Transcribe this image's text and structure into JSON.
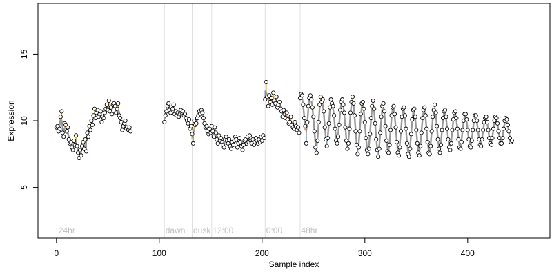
{
  "chart_data": {
    "type": "line",
    "xlabel": "Sample index",
    "ylabel": "Expression",
    "xlim": [
      -18,
      480
    ],
    "ylim": [
      1.2,
      18.8
    ],
    "xticks": [
      0,
      100,
      200,
      300,
      400
    ],
    "yticks": [
      5,
      10,
      15
    ],
    "group_labels": [
      {
        "text": "24hr",
        "x": 2
      },
      {
        "text": "dawn",
        "x": 106
      },
      {
        "text": "dusk",
        "x": 133
      },
      {
        "text": "12:00",
        "x": 152
      },
      {
        "text": "0:00",
        "x": 204
      },
      {
        "text": "48hr",
        "x": 238
      }
    ],
    "vlines": [
      105,
      132,
      151,
      203,
      237
    ],
    "colors": {
      "line": "#999999",
      "above": "#f5a623",
      "below": "#6f94c8",
      "vline": "#e0e0e0",
      "point_fill": "#ffffff",
      "point_stroke": "#000000"
    },
    "series": [
      {
        "segment_start": 0,
        "values": [
          9.5,
          9.6,
          9.2,
          9.4,
          10.3,
          10.7,
          9.1,
          8.8,
          9.8,
          9.7,
          9.2,
          9.5,
          8.6,
          8.3,
          8.4,
          8.0,
          7.8,
          8.5,
          8.2,
          8.9,
          8.1,
          7.6,
          7.2,
          7.8,
          7.4,
          8.1,
          8.4,
          7.9,
          8.6,
          7.7,
          9.1,
          8.8,
          9.6,
          9.3,
          10.0,
          9.7,
          10.4,
          10.9,
          10.2,
          10.6,
          10.8,
          10.3,
          10.5,
          10.7,
          9.9,
          10.3,
          10.2,
          10.6,
          10.9,
          11.2,
          10.8,
          11.5,
          10.7,
          11.0,
          10.5,
          11.2,
          11.3,
          11.1,
          10.6,
          10.9,
          11.3,
          10.4,
          10.2,
          9.9,
          9.3,
          9.6,
          9.8,
          10.0,
          9.4,
          9.5,
          9.3,
          9.5,
          9.2
        ]
      },
      {
        "segment_start": 105,
        "values": [
          9.9,
          10.4,
          10.7,
          11.1,
          11.3,
          10.8,
          10.6,
          11.0,
          10.9,
          11.2,
          10.5,
          10.7,
          10.4,
          10.6,
          10.3,
          10.5,
          10.8,
          10.6,
          10.7,
          10.4,
          10.5,
          10.2,
          10.0,
          9.8,
          10.1,
          9.4,
          9.6
        ]
      },
      {
        "segment_start": 132,
        "values": [
          9.0,
          8.3,
          10.0,
          9.7,
          9.8,
          10.2,
          10.4,
          10.7,
          10.5,
          10.8,
          10.6,
          10.2,
          9.8,
          9.5,
          9.6,
          9.2,
          9.0,
          9.4,
          9.1
        ]
      },
      {
        "segment_start": 151,
        "values": [
          9.6,
          9.2,
          8.8,
          9.5,
          9.1,
          8.6,
          8.3,
          8.9,
          8.5,
          8.7,
          8.4,
          8.2,
          8.0,
          8.6,
          8.8,
          8.5,
          8.3,
          8.6,
          8.1,
          7.9,
          8.4,
          8.2,
          8.5,
          8.8,
          8.6,
          8.0,
          8.3,
          8.7,
          8.4,
          8.1,
          7.8,
          8.2,
          8.5,
          8.6,
          8.3,
          8.8,
          8.4,
          8.9,
          8.5,
          8.3,
          8.6,
          8.2,
          8.4,
          8.7,
          8.5,
          8.3,
          8.6,
          8.4,
          8.8,
          8.5,
          8.9,
          8.7
        ]
      },
      {
        "segment_start": 203,
        "values": [
          11.6,
          12.9,
          11.8,
          11.1,
          11.9,
          11.4,
          11.7,
          11.2,
          12.1,
          11.5,
          11.3,
          11.8,
          11.0,
          11.2,
          11.4,
          10.9,
          10.7,
          10.3,
          10.8,
          10.5,
          10.2,
          10.6,
          10.1,
          9.8,
          9.9,
          10.3,
          9.7,
          9.5,
          9.4,
          9.9,
          9.6,
          9.3,
          9.5,
          9.1
        ]
      },
      {
        "segment_start": 237,
        "values": [
          11.7,
          12.0,
          11.9,
          11.2,
          10.2,
          9.6,
          8.3,
          9.9,
          11.1,
          11.7,
          11.9,
          11.6,
          11.0,
          10.3,
          9.2,
          8.0,
          7.6,
          8.5,
          9.9,
          11.2,
          11.8,
          11.4,
          11.6,
          10.7,
          9.5,
          8.6,
          8.1,
          8.7,
          9.8,
          11.0,
          11.6,
          11.3,
          11.1,
          10.4,
          9.4,
          8.5,
          8.3,
          8.8,
          9.7,
          10.8,
          11.4,
          11.6,
          11.2,
          10.6,
          9.5,
          8.5,
          7.9,
          8.3,
          9.4,
          10.6,
          11.4,
          11.8,
          11.3,
          10.4,
          9.2,
          8.2,
          7.5,
          8.0,
          9.2,
          10.5,
          11.3,
          11.4,
          10.9,
          9.9,
          8.7,
          7.8,
          7.5,
          7.9,
          9.0,
          10.2,
          11.1,
          11.5,
          10.9,
          9.8,
          8.6,
          7.8,
          7.3,
          7.9,
          9.1,
          10.3,
          11.1,
          11.3,
          10.7,
          9.6,
          8.5,
          7.7,
          7.6,
          8.2,
          9.3,
          10.4,
          11.0,
          11.1,
          10.5,
          9.5,
          8.4,
          7.6,
          7.4,
          8.0,
          9.2,
          10.3,
          10.9,
          11.0,
          10.4,
          9.4,
          8.3,
          7.5,
          7.3,
          7.9,
          9.0,
          10.1,
          10.8,
          10.9,
          10.3,
          9.3,
          8.3,
          7.6,
          7.4,
          8.1,
          9.1,
          10.2,
          10.8,
          11.0,
          10.4,
          9.4,
          8.4,
          7.6,
          7.5,
          8.1,
          9.2,
          10.3,
          10.8,
          11.2,
          10.6,
          9.6,
          8.6,
          7.9,
          7.6,
          8.2,
          9.3,
          10.2,
          10.7,
          10.8,
          10.3,
          9.4,
          8.6,
          8.0,
          7.8,
          8.3,
          9.3,
          10.1,
          10.6,
          10.7,
          10.2,
          9.4,
          8.6,
          8.0,
          7.9,
          8.4,
          9.3,
          10.0,
          10.5,
          10.5,
          10.1,
          9.3,
          8.6,
          8.1,
          8.0,
          8.5,
          9.3,
          10.0,
          10.4,
          10.4,
          10.0,
          9.3,
          8.6,
          8.2,
          8.1,
          8.6,
          9.3,
          9.9,
          10.2,
          10.3,
          9.9,
          9.3,
          8.7,
          8.3,
          8.2,
          8.7,
          9.4,
          10.0,
          10.3,
          10.2,
          9.8,
          9.2,
          8.7,
          8.3,
          8.3,
          8.7,
          9.4,
          10.0,
          10.2,
          10.1,
          9.7,
          9.2,
          8.7,
          8.4,
          8.5
        ]
      }
    ]
  }
}
